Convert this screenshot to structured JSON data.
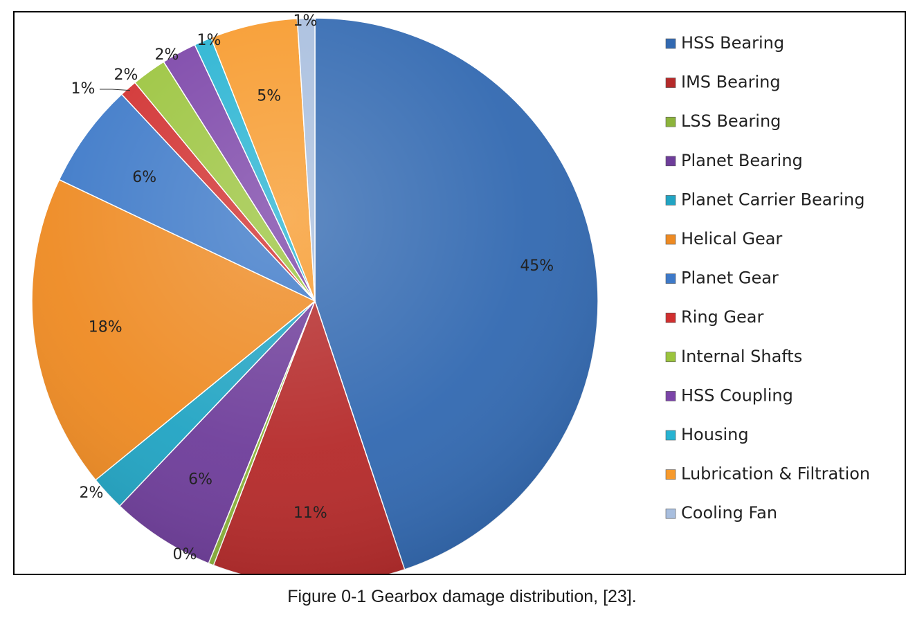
{
  "chart_data": {
    "type": "pie",
    "title": "",
    "slices": [
      {
        "name": "HSS Bearing",
        "value": 45,
        "label": "45%",
        "color": "#3269b1"
      },
      {
        "name": "IMS Bearing",
        "value": 11,
        "label": "11%",
        "color": "#b52a2a"
      },
      {
        "name": "LSS Bearing",
        "value": 0.3,
        "label": "0%",
        "color": "#8cb43b"
      },
      {
        "name": "Planet Bearing",
        "value": 6,
        "label": "6%",
        "color": "#6e3d9a"
      },
      {
        "name": "Planet Carrier Bearing",
        "value": 2,
        "label": "2%",
        "color": "#21a4c3"
      },
      {
        "name": "Helical Gear",
        "value": 18,
        "label": "18%",
        "color": "#ee8a22"
      },
      {
        "name": "Planet Gear",
        "value": 6,
        "label": "6%",
        "color": "#3d79c8"
      },
      {
        "name": "Ring Gear",
        "value": 1,
        "label": "1%",
        "color": "#d12f2f"
      },
      {
        "name": "Internal Shafts",
        "value": 2,
        "label": "2%",
        "color": "#9bc43d"
      },
      {
        "name": "HSS Coupling",
        "value": 2,
        "label": "2%",
        "color": "#7b44a8"
      },
      {
        "name": "Housing",
        "value": 1,
        "label": "1%",
        "color": "#27b3d2"
      },
      {
        "name": "Lubrication & Filtration",
        "value": 5,
        "label": "5%",
        "color": "#f79a2c"
      },
      {
        "name": "Cooling Fan",
        "value": 1,
        "label": "1%",
        "color": "#a8bede"
      }
    ],
    "legend_position": "right"
  },
  "caption": "Figure 0-1 Gearbox damage distribution, [23]."
}
